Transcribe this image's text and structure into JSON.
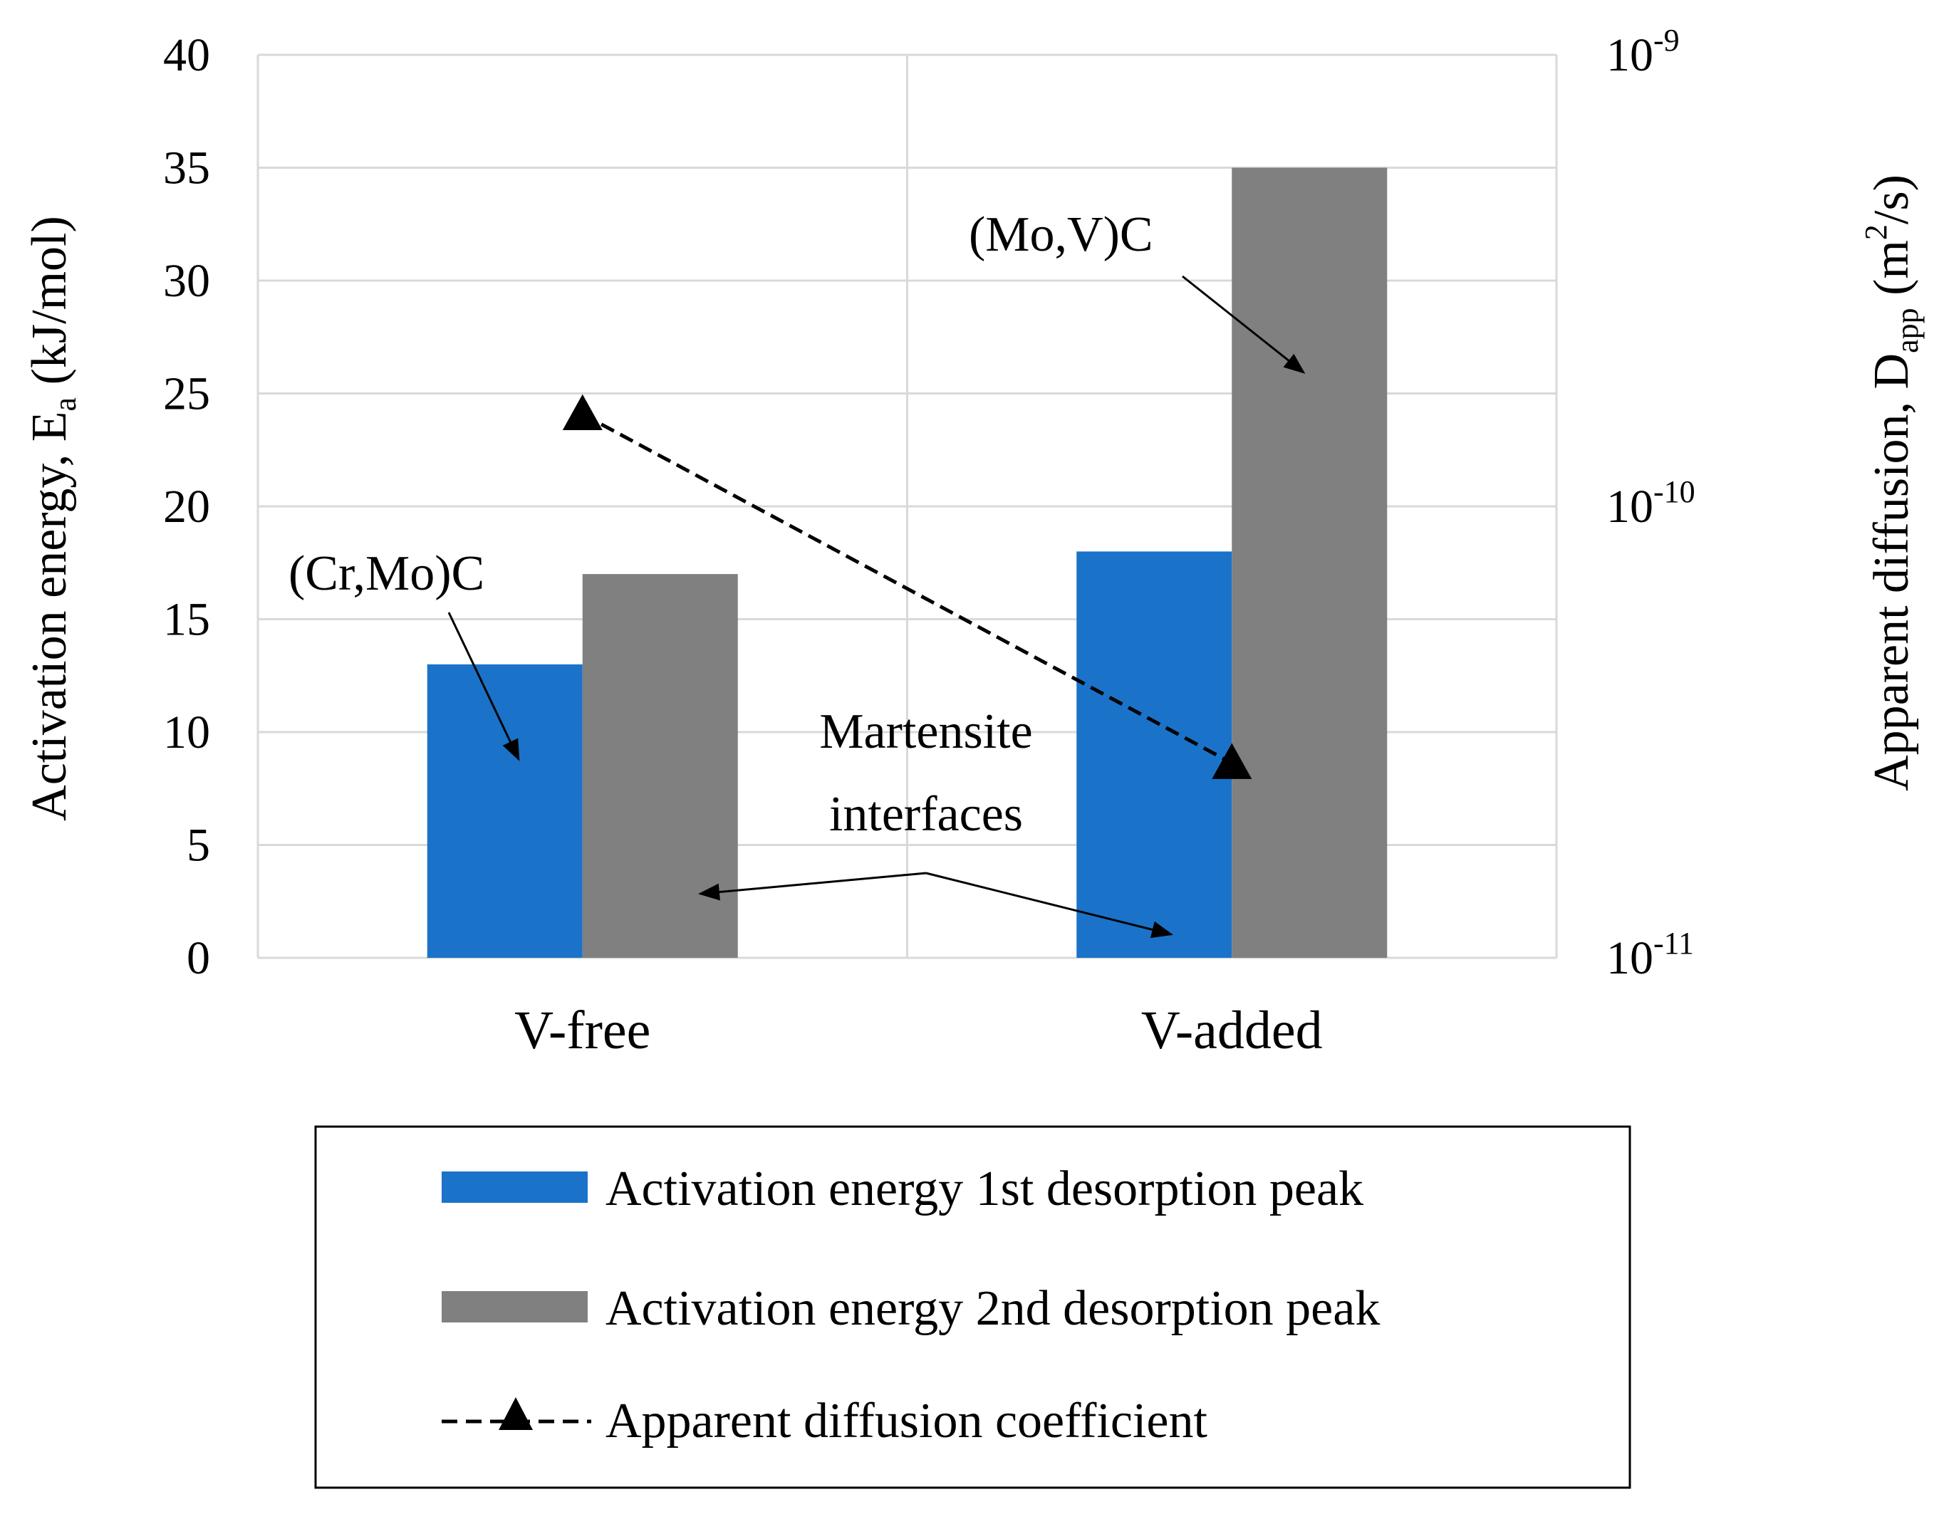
{
  "chart_data": {
    "type": "bar",
    "categories": [
      "V-free",
      "V-added"
    ],
    "series": [
      {
        "name": "Activation energy 1st desorption peak",
        "values": [
          13,
          18
        ],
        "color": "#1a73c9",
        "axis": "left"
      },
      {
        "name": "Activation energy 2nd desorption peak",
        "values": [
          17,
          35
        ],
        "color": "#808080",
        "axis": "left"
      }
    ],
    "line_series": {
      "name": "Apparent diffusion coefficient",
      "values": [
        1.6e-10,
        2.7e-11
      ],
      "color": "#000000",
      "axis": "right",
      "style": "dashed",
      "marker": "triangle"
    },
    "ylabel": {
      "main": "Activation energy, E",
      "sub": "a",
      "unit": " (kJ/mol)"
    },
    "y2label": {
      "main": "Apparent diffusion, D",
      "sub": "app",
      "unit_pre": " (m",
      "unit_sup": "2",
      "unit_post": "/s)"
    },
    "ylim": [
      0,
      40
    ],
    "yticks": [
      "0",
      "5",
      "10",
      "15",
      "20",
      "25",
      "30",
      "35",
      "40"
    ],
    "y2lim": [
      1e-11,
      1e-09
    ],
    "y2scale": "log",
    "y2ticks": [
      {
        "base": "10",
        "exp": "-11"
      },
      {
        "base": "10",
        "exp": "-10"
      },
      {
        "base": "10",
        "exp": "-9"
      }
    ],
    "grid": true,
    "annotations": [
      "(Cr,Mo)C",
      "(Mo,V)C",
      "Martensite",
      "interfaces"
    ],
    "legend_position": "bottom"
  }
}
